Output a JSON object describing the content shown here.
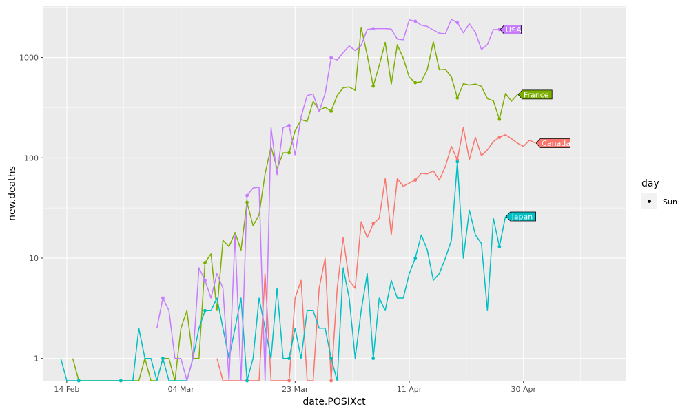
{
  "chart_data": {
    "type": "line",
    "xlabel": "date.POSIXct",
    "ylabel": "new.deaths",
    "y_scale": "log10",
    "ylim": [
      0.6,
      3300
    ],
    "xlim": [
      "2020-02-10",
      "2020-05-17"
    ],
    "x_ticks": [
      {
        "date": "2020-02-14",
        "label": "14 Feb"
      },
      {
        "date": "2020-03-04",
        "label": "04 Mar"
      },
      {
        "date": "2020-03-23",
        "label": "23 Mar"
      },
      {
        "date": "2020-04-11",
        "label": "11 Apr"
      },
      {
        "date": "2020-04-30",
        "label": "30 Apr"
      }
    ],
    "y_ticks": [
      1,
      10,
      100,
      1000
    ],
    "y_tick_labels": [
      "1",
      "10",
      "100",
      "1000"
    ],
    "grid": true,
    "legend": {
      "title": "day",
      "entries": [
        "Sun"
      ],
      "placement": "right"
    },
    "sunday_dates": [
      "2020-02-16",
      "2020-02-23",
      "2020-03-01",
      "2020-03-08",
      "2020-03-15",
      "2020-03-22",
      "2020-03-29",
      "2020-04-05",
      "2020-04-12",
      "2020-04-19",
      "2020-04-26"
    ],
    "series": [
      {
        "name": "Canada",
        "color": "#F8766D",
        "start": "2020-03-10",
        "values": [
          1,
          0.6,
          0.6,
          0.6,
          0.6,
          0.6,
          0.6,
          0.6,
          7,
          0.6,
          0.6,
          0.6,
          0.6,
          4,
          6,
          0.6,
          0.6,
          5,
          10,
          0.6,
          5,
          16,
          6,
          5,
          23,
          16,
          22,
          25,
          62,
          17,
          62,
          52,
          56,
          60,
          70,
          69,
          74,
          60,
          82,
          130,
          95,
          200,
          96,
          160,
          105,
          120,
          145,
          160,
          170,
          155,
          140,
          130,
          150,
          140
        ]
      },
      {
        "name": "France",
        "color": "#7CAE00",
        "start": "2020-02-15",
        "values": [
          1,
          0.6,
          0.6,
          0.6,
          0.6,
          0.6,
          0.6,
          0.6,
          0.6,
          0.6,
          0.6,
          0.6,
          1,
          0.6,
          0.6,
          1,
          1,
          0.6,
          2,
          3,
          1,
          1,
          9,
          11,
          3,
          15,
          13,
          18,
          12,
          36,
          21,
          27,
          69,
          128,
          78,
          112,
          112,
          186,
          240,
          231,
          365,
          299,
          319,
          292,
          418,
          499,
          509,
          471,
          2004,
          1053,
          518,
          833,
          1417,
          541,
          1341,
          987,
          635,
          561,
          574,
          762,
          1438,
          753,
          761,
          642,
          395,
          547,
          531,
          544,
          516,
          389,
          369,
          242,
          437,
          367,
          427
        ]
      },
      {
        "name": "Japan",
        "color": "#00BFC4",
        "start": "2020-02-13",
        "values": [
          1,
          0.6,
          0.6,
          0.6,
          0.6,
          0.6,
          0.6,
          0.6,
          0.6,
          0.6,
          0.6,
          0.6,
          0.6,
          2,
          1,
          1,
          0.6,
          1,
          0.6,
          0.6,
          0.6,
          0.6,
          1,
          2,
          3,
          3,
          4,
          2,
          1,
          2,
          4,
          0.6,
          1,
          4,
          2,
          1,
          5,
          1,
          1,
          2,
          1,
          3,
          3,
          2,
          2,
          1,
          0.6,
          8,
          4,
          1,
          3,
          7,
          1,
          4,
          3,
          6,
          4,
          4,
          7,
          10,
          17,
          12,
          6,
          7,
          10,
          15,
          91,
          10,
          30,
          17,
          14,
          3,
          25,
          13,
          26
        ]
      },
      {
        "name": "USA",
        "color": "#C77CFF",
        "start": "2020-02-29",
        "values": [
          2,
          4,
          3,
          1,
          1,
          0.6,
          1,
          8,
          6,
          4,
          7,
          5,
          0.6,
          17,
          0.6,
          42,
          50,
          51,
          0.6,
          200,
          68,
          200,
          210,
          107,
          257,
          418,
          432,
          290,
          437,
          995,
          946,
          1120,
          1306,
          1172,
          1320,
          1905,
          1938,
          1939,
          1940,
          1920,
          1525,
          1500,
          2380,
          2300,
          2100,
          2040,
          1880,
          1745,
          1725,
          2405,
          2230,
          1765,
          2170,
          1780,
          1205,
          1345,
          1900,
          1900
        ]
      }
    ],
    "end_labels": [
      "USA",
      "France",
      "Canada",
      "Japan"
    ]
  }
}
